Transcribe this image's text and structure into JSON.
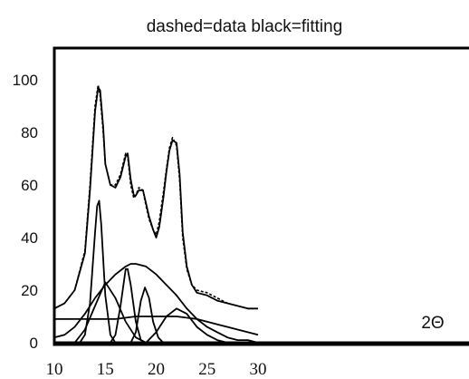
{
  "chart_data": {
    "type": "line",
    "title": "dashed=data    black=fitting",
    "xlabel": "2Θ",
    "ylabel": "",
    "xlim": [
      10,
      30
    ],
    "ylim": [
      0,
      110
    ],
    "xticks": [
      "10",
      "15",
      "20",
      "25",
      "30"
    ],
    "yticks": [
      "0",
      "20",
      "40",
      "60",
      "80",
      "100"
    ],
    "grid": false,
    "legend": "none",
    "baseline_y": 12,
    "series": [
      {
        "name": "data",
        "style": "dashed",
        "x": [
          10,
          11,
          12,
          13,
          13.5,
          14,
          14.3,
          14.5,
          14.8,
          15,
          15.5,
          16,
          16.5,
          17,
          17.2,
          17.5,
          17.8,
          18,
          18.3,
          18.7,
          19,
          19.3,
          19.7,
          20,
          20.3,
          20.7,
          21,
          21.3,
          21.6,
          22,
          22.3,
          22.6,
          23,
          23.5,
          24,
          25,
          26,
          27,
          28,
          29,
          30
        ],
        "y": [
          13,
          15,
          20,
          35,
          60,
          90,
          98,
          94,
          80,
          68,
          60,
          60,
          64,
          72,
          71,
          60,
          55,
          56,
          59,
          58,
          52,
          47,
          43,
          41,
          46,
          57,
          66,
          74,
          78,
          75,
          62,
          40,
          28,
          22,
          20,
          19,
          17,
          15,
          14,
          13,
          13
        ]
      },
      {
        "name": "fitting",
        "style": "solid",
        "x": [
          10,
          11,
          12,
          13,
          13.5,
          14,
          14.3,
          14.5,
          14.8,
          15,
          15.5,
          16,
          16.5,
          17,
          17.2,
          17.5,
          17.8,
          18,
          18.3,
          18.7,
          19,
          19.3,
          19.7,
          20,
          20.3,
          20.7,
          21,
          21.3,
          21.6,
          22,
          22.3,
          22.6,
          23,
          23.5,
          24,
          25,
          26,
          27,
          28,
          29,
          30
        ],
        "y": [
          13,
          15,
          20,
          34,
          58,
          88,
          97,
          96,
          82,
          68,
          60,
          59,
          63,
          71,
          72,
          62,
          56,
          56,
          58,
          58,
          53,
          48,
          43,
          40,
          44,
          55,
          65,
          73,
          77,
          76,
          64,
          42,
          29,
          22,
          19,
          18,
          16,
          15,
          14,
          13,
          13
        ]
      },
      {
        "name": "",
        "style": "solid",
        "x": [
          10,
          11,
          12,
          13,
          14,
          15,
          16,
          17,
          17.5,
          18,
          19,
          20,
          21,
          22,
          23,
          24,
          25,
          26,
          27,
          28,
          29,
          30
        ],
        "y": [
          2,
          3,
          6,
          11,
          17,
          22,
          26,
          29,
          30,
          30,
          29,
          26,
          22,
          18,
          13,
          9,
          6,
          4,
          2,
          1,
          1,
          0
        ]
      },
      {
        "name": "",
        "style": "solid",
        "x": [
          12.5,
          13,
          13.5,
          14,
          14.2,
          14.4,
          14.6,
          15,
          15.5,
          16
        ],
        "y": [
          0,
          3,
          15,
          42,
          52,
          54,
          45,
          18,
          3,
          0
        ]
      },
      {
        "name": "",
        "style": "solid",
        "x": [
          12,
          13,
          14,
          15,
          16,
          17,
          18,
          19
        ],
        "y": [
          0,
          5,
          14,
          23,
          17,
          8,
          2,
          0
        ]
      },
      {
        "name": "",
        "style": "solid",
        "x": [
          15.5,
          16,
          16.5,
          17,
          17.2,
          17.5,
          18,
          18.5,
          19
        ],
        "y": [
          0,
          3,
          14,
          28,
          28,
          22,
          8,
          1,
          0
        ]
      },
      {
        "name": "",
        "style": "solid",
        "x": [
          17.5,
          18,
          18.5,
          18.9,
          19.3,
          19.7,
          20.2,
          20.7
        ],
        "y": [
          0,
          4,
          16,
          21,
          17,
          8,
          2,
          0
        ]
      },
      {
        "name": "",
        "style": "solid",
        "x": [
          19,
          20,
          21,
          22,
          23,
          24,
          25,
          26,
          27
        ],
        "y": [
          0,
          4,
          10,
          13,
          11,
          6,
          3,
          1,
          0
        ]
      },
      {
        "name": "",
        "style": "solid",
        "x": [
          10,
          12,
          14,
          16,
          18,
          20,
          22,
          24,
          26,
          28,
          30
        ],
        "y": [
          9,
          9,
          9,
          9,
          10,
          10,
          10,
          9,
          7,
          5,
          3
        ]
      }
    ]
  }
}
